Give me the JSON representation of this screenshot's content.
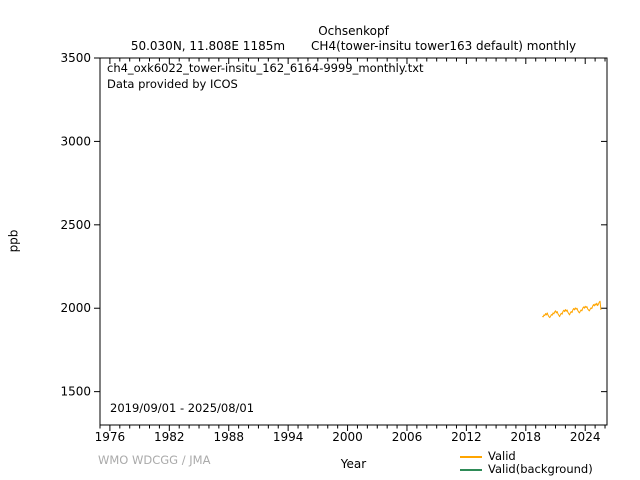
{
  "header": {
    "title": "Ochsenkopf",
    "location": "50.030N, 11.808E 1185m",
    "series_info": "CH4(tower-insitu tower163 default) monthly"
  },
  "annotations": {
    "filename": "ch4_oxk6022_tower-insitu_162_6164-9999_monthly.txt",
    "provider": "Data provided by ICOS",
    "date_range": "2019/09/01 - 2025/08/01",
    "credit": "WMO WDCGG / JMA"
  },
  "axes": {
    "xlabel": "Year",
    "ylabel": "ppb",
    "x_ticks": [
      1976,
      1982,
      1988,
      1994,
      2000,
      2006,
      2012,
      2018,
      2024
    ],
    "x_minor_step_years": 1,
    "y_ticks": [
      1500,
      2000,
      2500,
      3000,
      3500
    ],
    "xlim": [
      1975,
      2026.2
    ],
    "ylim": [
      1300,
      3500
    ],
    "grid": false,
    "axis_color": "#000000"
  },
  "legend": {
    "position": "bottom-right-outside",
    "items": [
      {
        "label": "Valid",
        "color": "#ffa500"
      },
      {
        "label": "Valid(background)",
        "color": "#2e8b57"
      }
    ]
  },
  "colors": {
    "valid_orange": "#ffa500",
    "background_green": "#2e8b57",
    "credit_gray": "#aaaaaa",
    "axis_black": "#000000"
  },
  "chart_data": {
    "type": "line",
    "title": "Ochsenkopf CH4(tower-insitu tower163 default) monthly",
    "xlabel": "Year",
    "ylabel": "ppb",
    "xlim": [
      1975,
      2026.2
    ],
    "ylim": [
      1300,
      3500
    ],
    "legend_position": "bottom-right-outside",
    "grid": false,
    "x_start_decimal_year": 2019.6667,
    "x_step_years": 0.0833333,
    "period_label": "2019/09/01 - 2025/08/01",
    "series": [
      {
        "name": "Valid",
        "color": "#ffa500",
        "values": [
          1952,
          1948,
          1960,
          1956,
          1968,
          1960,
          1972,
          1958,
          1950,
          1944,
          1952,
          1962,
          1958,
          1972,
          1966,
          1978,
          1985,
          1972,
          1980,
          1966,
          1958,
          1950,
          1962,
          1970,
          1964,
          1980,
          1988,
          1980,
          1992,
          1982,
          1990,
          1976,
          1968,
          1960,
          1972,
          1980,
          1974,
          1990,
          1998,
          1990,
          2002,
          1994,
          2000,
          1986,
          1978,
          1972,
          1982,
          1990,
          1984,
          2000,
          2008,
          2000,
          2012,
          2004,
          2010,
          1996,
          1990,
          1984,
          1994,
          2002,
          1998,
          2012,
          2022,
          2014,
          2026,
          2018,
          2030,
          2016,
          2024,
          2036,
          2042,
          1990
        ]
      },
      {
        "name": "Valid(background)",
        "color": "#2e8b57",
        "values": []
      }
    ]
  }
}
